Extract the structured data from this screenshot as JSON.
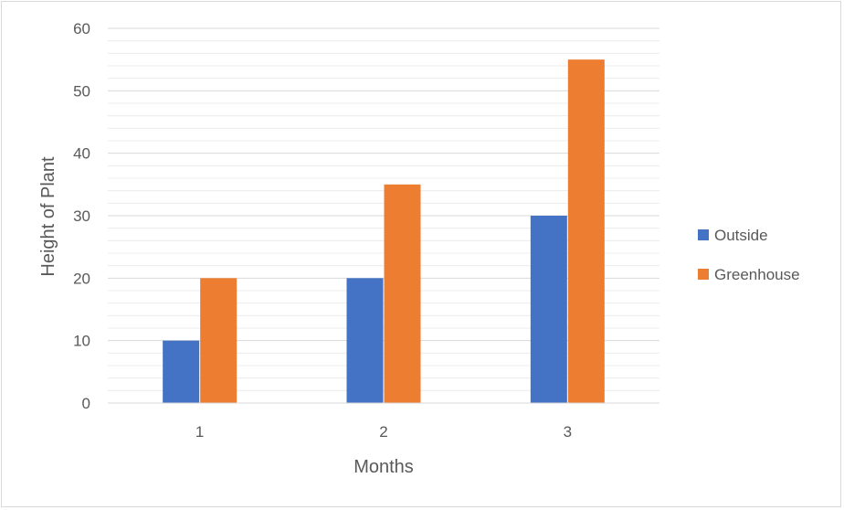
{
  "chart_data": {
    "type": "bar",
    "title": "",
    "xlabel": "Months",
    "ylabel": "Height of Plant",
    "categories": [
      "1",
      "2",
      "3"
    ],
    "series": [
      {
        "name": "Outside",
        "values": [
          10,
          20,
          30
        ],
        "color": "#4472c4"
      },
      {
        "name": "Greenhouse",
        "values": [
          20,
          35,
          55
        ],
        "color": "#ed7d31"
      }
    ],
    "ylim": [
      0,
      60
    ],
    "yticks": [
      "0",
      "10",
      "20",
      "30",
      "40",
      "50",
      "60"
    ],
    "grid": true,
    "gridline_color": "#d9d9d9",
    "legend_position": "right"
  }
}
